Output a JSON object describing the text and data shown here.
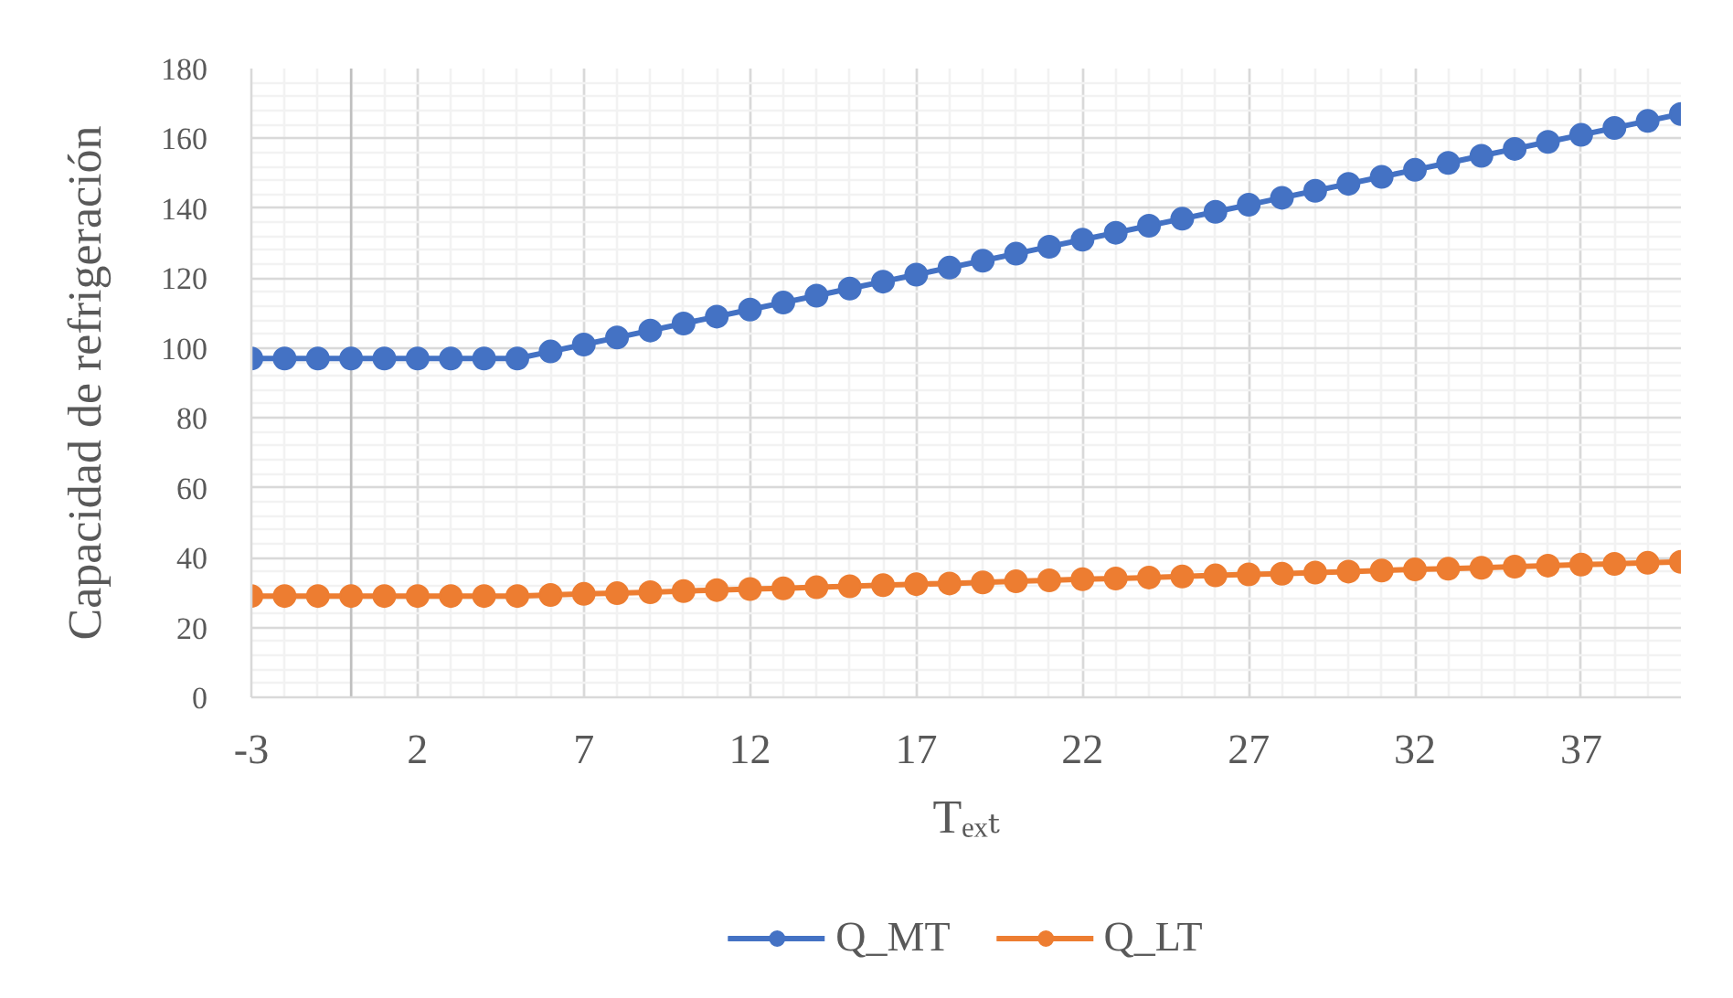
{
  "chart_data": {
    "type": "line",
    "xlabel": "Tₑₓₜ",
    "ylabel": "Capacidad de refrigeración",
    "x": [
      -3,
      -2,
      -1,
      0,
      1,
      2,
      3,
      4,
      5,
      6,
      7,
      8,
      9,
      10,
      11,
      12,
      13,
      14,
      15,
      16,
      17,
      18,
      19,
      20,
      21,
      22,
      23,
      24,
      25,
      26,
      27,
      28,
      29,
      30,
      31,
      32,
      33,
      34,
      35,
      36,
      37,
      38,
      39,
      40
    ],
    "series": [
      {
        "name": "Q_MT",
        "color": "#4472c4",
        "values": [
          97,
          97,
          97,
          97,
          97,
          97,
          97,
          97,
          97,
          99,
          101,
          103,
          105,
          107,
          109,
          111,
          113,
          115,
          117,
          119,
          121,
          123,
          125,
          127,
          129,
          131,
          133,
          135,
          137,
          139,
          141,
          143,
          145,
          147,
          149,
          151,
          153,
          155,
          157,
          159,
          161,
          163,
          165,
          167
        ]
      },
      {
        "name": "Q_LT",
        "color": "#ed7d31",
        "values": [
          29,
          29,
          29,
          29,
          29,
          29,
          29,
          29,
          29,
          29.3,
          29.6,
          29.8,
          30.1,
          30.4,
          30.7,
          31.0,
          31.2,
          31.5,
          31.8,
          32.1,
          32.4,
          32.6,
          32.9,
          33.2,
          33.5,
          33.8,
          34.0,
          34.3,
          34.6,
          34.9,
          35.2,
          35.4,
          35.7,
          36.0,
          36.3,
          36.6,
          36.8,
          37.1,
          37.4,
          37.7,
          38.0,
          38.2,
          38.5,
          38.8
        ]
      }
    ],
    "xlim": [
      -3,
      40
    ],
    "ylim": [
      0,
      180
    ],
    "xticks": [
      -3,
      2,
      7,
      12,
      17,
      22,
      27,
      32,
      37
    ],
    "yticks": [
      0,
      20,
      40,
      60,
      80,
      100,
      120,
      140,
      160,
      180
    ],
    "ref_lines": [
      {
        "axis": "x",
        "value": 0,
        "color": "#bfbfbf"
      }
    ],
    "grid": true,
    "legend": "bottom",
    "marker": "circle",
    "line_style": "solid"
  }
}
